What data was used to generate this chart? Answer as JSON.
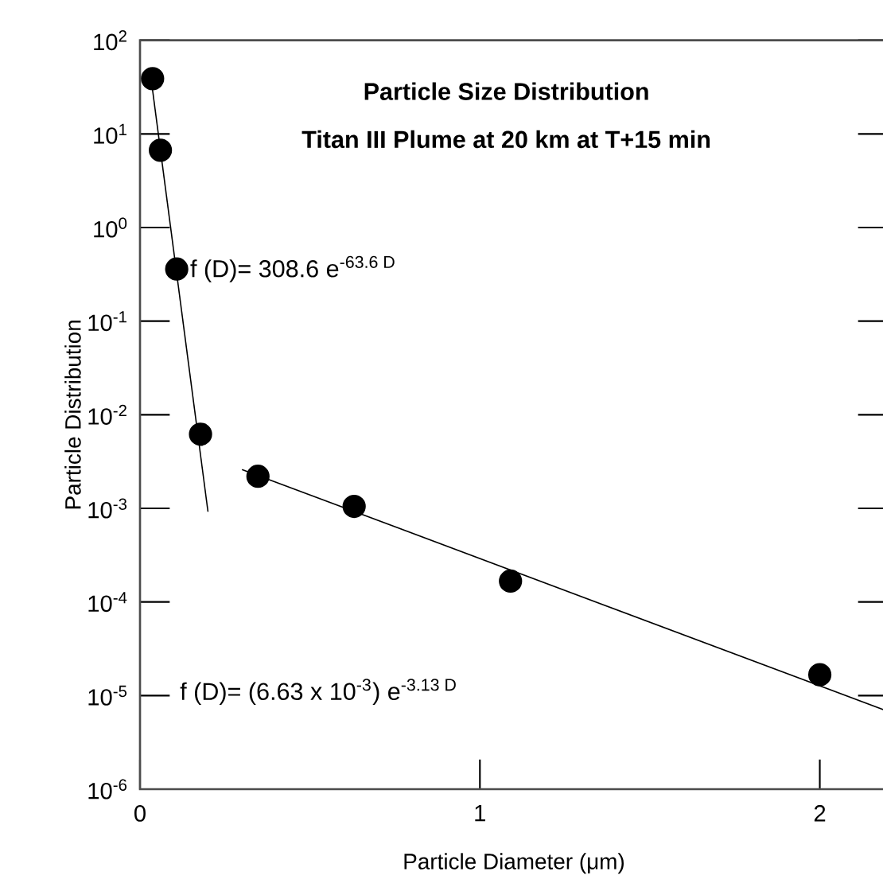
{
  "chart_data": {
    "type": "scatter",
    "title": "Particle Size Distribution",
    "subtitle": "Titan III Plume at 20 km at T+15 min",
    "xlabel": "Particle Diameter (μm)",
    "ylabel": "Particle Distribution",
    "log": "y",
    "xlim": [
      0,
      2.2
    ],
    "xticks": [
      0,
      1,
      2
    ],
    "ylim": [
      1e-06,
      100
    ],
    "yticks": [
      {
        "value": 1e-06,
        "label": "10$^{-6}$"
      },
      {
        "value": 1e-05,
        "label": "10$^{-5}$"
      },
      {
        "value": 0.0001,
        "label": "10$^{-4}$"
      },
      {
        "value": 0.001,
        "label": "10$^{-3}$"
      },
      {
        "value": 0.01,
        "label": "10$^{-2}$"
      },
      {
        "value": 0.1,
        "label": "10$^{-1}$"
      },
      {
        "value": 1,
        "label": "10$^{0}$"
      },
      {
        "value": 10,
        "label": "10$^{1}$"
      },
      {
        "value": 100,
        "label": "10$^{2}$"
      }
    ],
    "series": [
      {
        "color": "#000000",
        "marker": "circle",
        "x": [
          0.037,
          0.06,
          0.108,
          0.178,
          0.347,
          0.63,
          1.09,
          2.0
        ],
        "values": [
          39,
          6.7,
          0.36,
          0.0062,
          0.0022,
          0.00105,
          0.000167,
          1.67e-05
        ]
      },
      {
        "type": "line",
        "color": "#000000",
        "marker": "none",
        "x": [
          0.03,
          0.2
        ],
        "values": [
          45.7,
          0.00092
        ]
      },
      {
        "type": "line",
        "color": "#000000",
        "marker": "none",
        "x": [
          0.3,
          2.2
        ],
        "values": [
          0.0026,
          6.8e-06
        ]
      }
    ],
    "annotations": [
      {
        "text": "f (D)= 308.6  e$^{-63.6 D}$",
        "x": 0.14,
        "y": 0.36
      },
      "f (D)= (6.63 x 10$^{-3}$)  e$^{-3.13 D}$"
    ]
  }
}
